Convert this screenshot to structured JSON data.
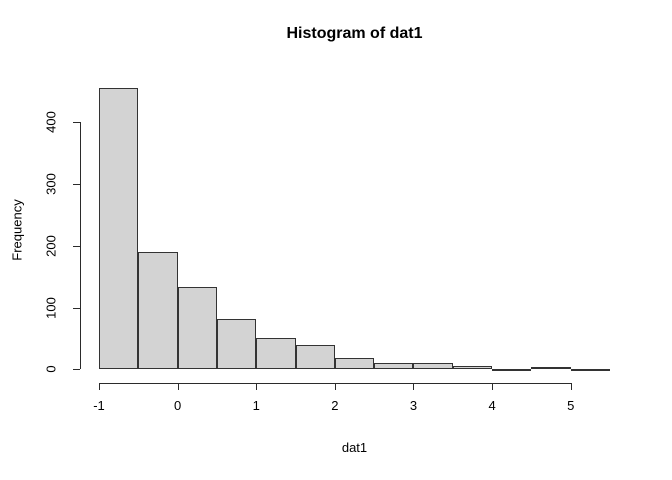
{
  "chart_data": {
    "type": "bar",
    "subtype": "histogram",
    "title": "Histogram of dat1",
    "xlabel": "dat1",
    "ylabel": "Frequency",
    "bin_start": -1,
    "bin_width": 0.5,
    "bins": [
      {
        "from": -1.0,
        "to": -0.5,
        "count": 455
      },
      {
        "from": -0.5,
        "to": 0.0,
        "count": 190
      },
      {
        "from": 0.0,
        "to": 0.5,
        "count": 133
      },
      {
        "from": 0.5,
        "to": 1.0,
        "count": 81
      },
      {
        "from": 1.0,
        "to": 1.5,
        "count": 50
      },
      {
        "from": 1.5,
        "to": 2.0,
        "count": 39
      },
      {
        "from": 2.0,
        "to": 2.5,
        "count": 19
      },
      {
        "from": 2.5,
        "to": 3.0,
        "count": 10
      },
      {
        "from": 3.0,
        "to": 3.5,
        "count": 10
      },
      {
        "from": 3.5,
        "to": 4.0,
        "count": 6
      },
      {
        "from": 4.0,
        "to": 4.5,
        "count": 1
      },
      {
        "from": 4.5,
        "to": 5.0,
        "count": 4
      },
      {
        "from": 5.0,
        "to": 5.5,
        "count": 1
      }
    ],
    "x_ticks": [
      "-1",
      "0",
      "1",
      "2",
      "3",
      "4",
      "5"
    ],
    "x_tick_values": [
      -1,
      0,
      1,
      2,
      3,
      4,
      5
    ],
    "y_ticks": [
      "0",
      "100",
      "200",
      "300",
      "400"
    ],
    "y_tick_values": [
      0,
      100,
      200,
      300,
      400
    ],
    "xlim": [
      -1,
      5.5
    ],
    "ylim": [
      0,
      455
    ],
    "grid": false,
    "legend": null,
    "bar_fill": "#d3d3d3",
    "bar_border": "#333333",
    "axis_color": "#2b2b2b"
  }
}
